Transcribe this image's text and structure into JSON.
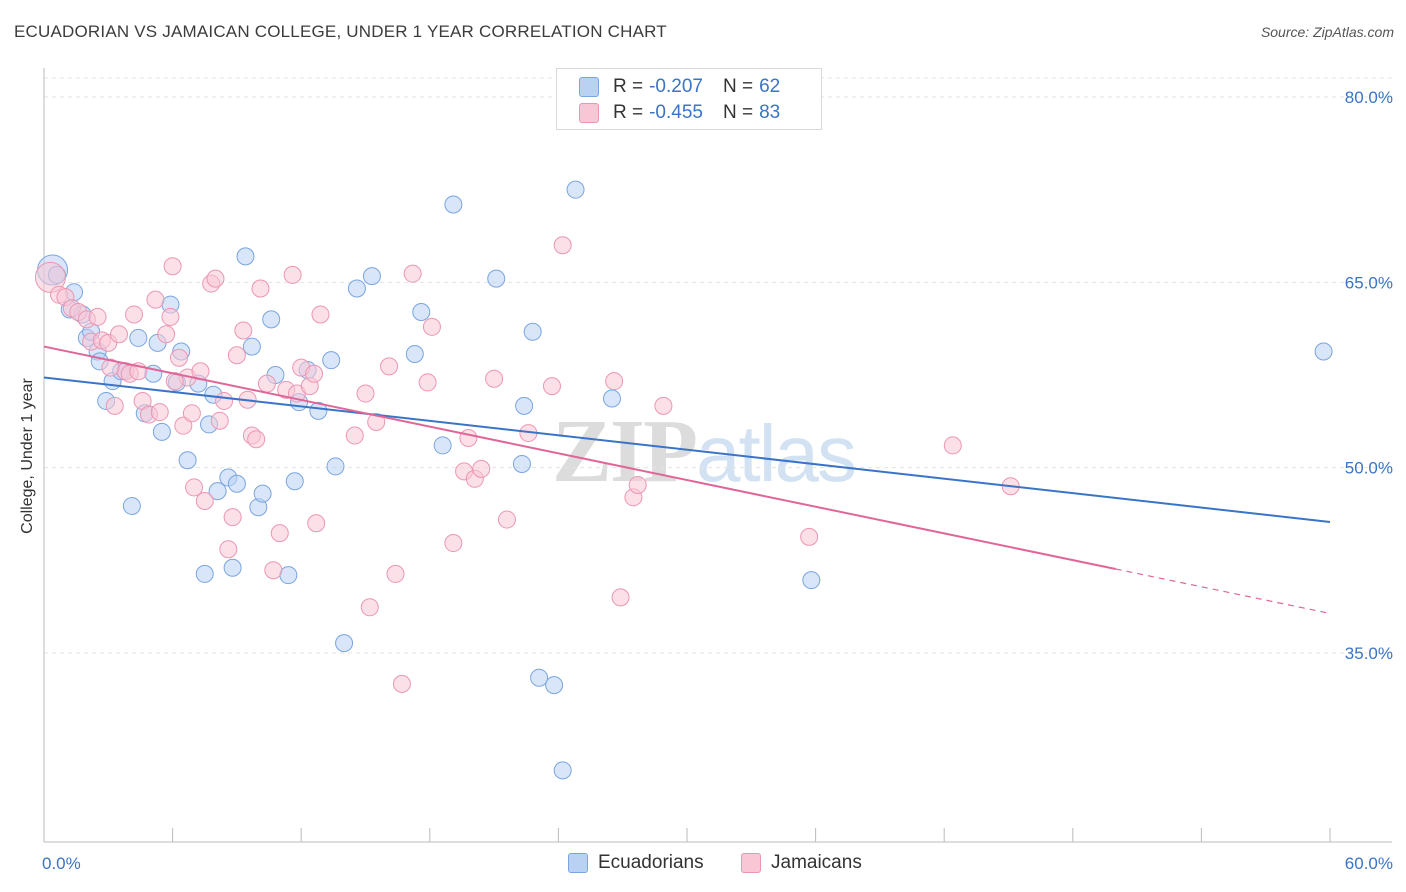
{
  "header": {
    "title": "ECUADORIAN VS JAMAICAN COLLEGE, UNDER 1 YEAR CORRELATION CHART",
    "source": "Source: ZipAtlas.com"
  },
  "watermark": {
    "zip": "ZIP",
    "atlas": "atlas"
  },
  "legend": {
    "r_label": "R =",
    "n_label": "N =",
    "rows": [
      {
        "r": "-0.207",
        "n": "62",
        "color": "#7aa5e0"
      },
      {
        "r": "-0.455",
        "n": "83",
        "color": "#ec96b3"
      }
    ]
  },
  "chart_data": {
    "type": "scatter",
    "title": "ECUADORIAN VS JAMAICAN COLLEGE, UNDER 1 YEAR CORRELATION CHART",
    "xlabel": "",
    "ylabel": "College, Under 1 year",
    "xlim": [
      0,
      60
    ],
    "ylim": [
      21,
      82
    ],
    "x_tick_labels": [
      "0.0%",
      "60.0%"
    ],
    "y_ticks": [
      35,
      50,
      65,
      80
    ],
    "y_tick_labels": [
      "35.0%",
      "50.0%",
      "65.0%",
      "80.0%"
    ],
    "grid": true,
    "legend_position": "top-center",
    "series": [
      {
        "name": "Ecuadorians",
        "color": "#7aa5e0",
        "fill": "#b9d2f4",
        "line_color": "#3a74c7",
        "trend": {
          "x": [
            0,
            60
          ],
          "y": [
            57.3,
            45.6
          ],
          "dashed_from": null
        },
        "points": [
          [
            0.4,
            66.0
          ],
          [
            0.6,
            65.6
          ],
          [
            1.2,
            62.8
          ],
          [
            1.4,
            64.2
          ],
          [
            1.8,
            62.4
          ],
          [
            2.0,
            60.5
          ],
          [
            2.2,
            61.0
          ],
          [
            2.5,
            59.4
          ],
          [
            2.6,
            58.6
          ],
          [
            2.9,
            55.4
          ],
          [
            3.2,
            57.0
          ],
          [
            3.6,
            57.8
          ],
          [
            3.8,
            57.8
          ],
          [
            4.1,
            46.9
          ],
          [
            4.4,
            60.5
          ],
          [
            4.7,
            54.4
          ],
          [
            5.1,
            57.6
          ],
          [
            5.3,
            60.1
          ],
          [
            5.5,
            52.9
          ],
          [
            5.9,
            63.2
          ],
          [
            6.2,
            56.9
          ],
          [
            6.4,
            59.4
          ],
          [
            6.7,
            50.6
          ],
          [
            7.2,
            56.8
          ],
          [
            7.5,
            41.4
          ],
          [
            7.7,
            53.5
          ],
          [
            7.9,
            55.9
          ],
          [
            8.1,
            48.1
          ],
          [
            8.6,
            49.2
          ],
          [
            8.8,
            41.9
          ],
          [
            9.0,
            48.7
          ],
          [
            9.4,
            67.1
          ],
          [
            9.7,
            59.8
          ],
          [
            10.0,
            46.8
          ],
          [
            10.2,
            47.9
          ],
          [
            10.6,
            62.0
          ],
          [
            10.8,
            57.5
          ],
          [
            11.4,
            41.3
          ],
          [
            11.7,
            48.9
          ],
          [
            11.9,
            55.3
          ],
          [
            12.3,
            57.9
          ],
          [
            12.8,
            54.6
          ],
          [
            13.4,
            58.7
          ],
          [
            13.6,
            50.1
          ],
          [
            14.0,
            35.8
          ],
          [
            14.6,
            64.5
          ],
          [
            15.3,
            65.5
          ],
          [
            17.3,
            59.2
          ],
          [
            17.6,
            62.6
          ],
          [
            18.6,
            51.8
          ],
          [
            19.1,
            71.3
          ],
          [
            21.1,
            65.3
          ],
          [
            22.3,
            50.3
          ],
          [
            22.4,
            55.0
          ],
          [
            22.8,
            61.0
          ],
          [
            23.1,
            33.0
          ],
          [
            23.8,
            32.4
          ],
          [
            24.2,
            25.5
          ],
          [
            24.8,
            72.5
          ],
          [
            26.5,
            55.6
          ],
          [
            35.8,
            40.9
          ],
          [
            59.7,
            59.4
          ]
        ]
      },
      {
        "name": "Jamaicans",
        "color": "#ec96b3",
        "fill": "#f9c6d6",
        "line_color": "#e0669a",
        "trend": {
          "x": [
            0,
            50
          ],
          "y": [
            59.8,
            41.8
          ],
          "dashed_to": [
            60,
            38.2
          ]
        },
        "points": [
          [
            0.3,
            65.4
          ],
          [
            0.7,
            64.0
          ],
          [
            1.0,
            63.8
          ],
          [
            1.3,
            62.9
          ],
          [
            1.6,
            62.6
          ],
          [
            2.0,
            62.0
          ],
          [
            2.2,
            60.2
          ],
          [
            2.5,
            62.2
          ],
          [
            2.7,
            60.3
          ],
          [
            3.0,
            60.1
          ],
          [
            3.3,
            55.0
          ],
          [
            3.5,
            60.8
          ],
          [
            3.8,
            57.8
          ],
          [
            4.0,
            57.6
          ],
          [
            4.2,
            62.4
          ],
          [
            4.4,
            57.8
          ],
          [
            4.6,
            55.4
          ],
          [
            4.9,
            54.3
          ],
          [
            5.2,
            63.6
          ],
          [
            5.4,
            54.5
          ],
          [
            5.7,
            60.8
          ],
          [
            5.9,
            62.2
          ],
          [
            6.0,
            66.3
          ],
          [
            6.3,
            58.9
          ],
          [
            6.5,
            53.4
          ],
          [
            6.7,
            57.3
          ],
          [
            6.9,
            54.4
          ],
          [
            7.0,
            48.4
          ],
          [
            7.3,
            57.8
          ],
          [
            7.5,
            47.3
          ],
          [
            7.8,
            64.9
          ],
          [
            8.0,
            65.3
          ],
          [
            8.2,
            53.8
          ],
          [
            8.4,
            55.4
          ],
          [
            8.6,
            43.4
          ],
          [
            8.8,
            46.0
          ],
          [
            9.0,
            59.1
          ],
          [
            9.3,
            61.1
          ],
          [
            9.5,
            55.5
          ],
          [
            9.7,
            52.6
          ],
          [
            10.1,
            64.5
          ],
          [
            10.4,
            56.8
          ],
          [
            10.7,
            41.7
          ],
          [
            11.0,
            44.7
          ],
          [
            11.3,
            56.3
          ],
          [
            11.6,
            65.6
          ],
          [
            11.8,
            56.0
          ],
          [
            12.0,
            58.1
          ],
          [
            12.4,
            56.6
          ],
          [
            12.7,
            45.5
          ],
          [
            12.9,
            62.4
          ],
          [
            14.5,
            52.6
          ],
          [
            15.0,
            56.0
          ],
          [
            15.2,
            38.7
          ],
          [
            15.5,
            53.7
          ],
          [
            16.1,
            58.2
          ],
          [
            16.4,
            41.4
          ],
          [
            16.7,
            32.5
          ],
          [
            17.2,
            65.7
          ],
          [
            17.9,
            56.9
          ],
          [
            18.1,
            61.4
          ],
          [
            19.1,
            43.9
          ],
          [
            19.6,
            49.7
          ],
          [
            19.8,
            52.4
          ],
          [
            20.1,
            49.1
          ],
          [
            20.4,
            49.9
          ],
          [
            21.0,
            57.2
          ],
          [
            21.6,
            45.8
          ],
          [
            22.6,
            52.8
          ],
          [
            23.7,
            56.6
          ],
          [
            24.2,
            68.0
          ],
          [
            26.6,
            57.0
          ],
          [
            26.9,
            39.5
          ],
          [
            27.5,
            47.6
          ],
          [
            27.7,
            48.6
          ],
          [
            28.9,
            55.0
          ],
          [
            35.7,
            44.4
          ],
          [
            42.4,
            51.8
          ],
          [
            45.1,
            48.5
          ],
          [
            9.9,
            52.3
          ],
          [
            12.6,
            57.6
          ],
          [
            3.1,
            58.1
          ],
          [
            6.1,
            57.0
          ]
        ]
      }
    ]
  }
}
